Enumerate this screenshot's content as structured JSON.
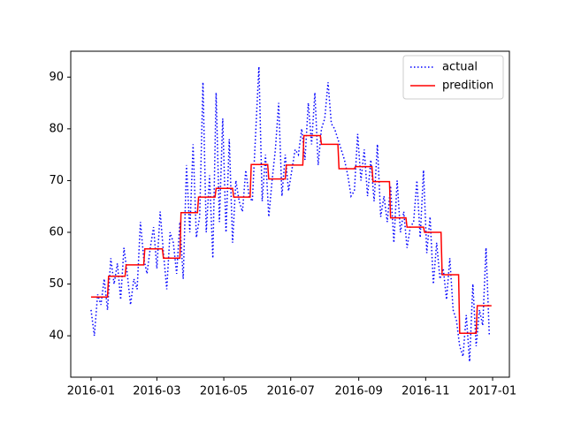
{
  "chart_data": {
    "type": "line",
    "xlim": [
      -18.5,
      381.3
    ],
    "ylim": [
      32,
      95
    ],
    "xticks": [
      {
        "value": 0,
        "label": "2016-01"
      },
      {
        "value": 60,
        "label": "2016-03"
      },
      {
        "value": 121,
        "label": "2016-05"
      },
      {
        "value": 182,
        "label": "2016-07"
      },
      {
        "value": 244,
        "label": "2016-09"
      },
      {
        "value": 305,
        "label": "2016-11"
      },
      {
        "value": 366,
        "label": "2017-01"
      }
    ],
    "yticks": [
      40,
      50,
      60,
      70,
      80,
      90
    ],
    "grid": false,
    "legend": "upper right",
    "series": [
      {
        "name": "actual",
        "color": "#0000ff",
        "linestyle": "dotted",
        "x": [
          0,
          3,
          6,
          9,
          12,
          15,
          18,
          21,
          24,
          27,
          30,
          33,
          36,
          39,
          42,
          45,
          48,
          51,
          54,
          57,
          60,
          63,
          66,
          69,
          72,
          75,
          78,
          81,
          84,
          87,
          90,
          93,
          96,
          99,
          102,
          105,
          108,
          111,
          114,
          117,
          120,
          123,
          126,
          129,
          132,
          135,
          138,
          141,
          144,
          147,
          150,
          153,
          156,
          159,
          162,
          165,
          168,
          171,
          174,
          177,
          180,
          183,
          186,
          189,
          192,
          195,
          198,
          201,
          204,
          207,
          210,
          213,
          216,
          219,
          222,
          225,
          228,
          231,
          234,
          237,
          240,
          243,
          246,
          249,
          252,
          255,
          258,
          261,
          264,
          267,
          270,
          273,
          276,
          279,
          282,
          285,
          288,
          291,
          294,
          297,
          300,
          303,
          306,
          309,
          312,
          315,
          318,
          321,
          324,
          327,
          330,
          333,
          336,
          339,
          342,
          345,
          348,
          351,
          354,
          357,
          360,
          363
        ],
        "values": [
          45,
          40,
          48,
          46,
          51,
          45,
          55,
          50,
          54,
          47,
          57,
          52,
          46,
          51,
          49,
          62,
          55,
          52,
          57,
          61,
          53,
          64,
          56,
          49,
          60,
          58,
          52,
          62,
          51,
          73,
          60,
          77,
          59,
          63,
          89,
          60,
          71,
          55,
          87,
          62,
          82,
          60,
          78,
          58,
          70,
          66,
          64,
          72,
          67,
          66,
          79,
          92,
          66,
          75,
          63,
          70,
          76,
          85,
          67,
          75,
          68,
          72,
          76,
          75,
          80,
          74,
          85,
          77,
          87,
          73,
          80,
          82,
          89,
          81,
          80,
          78,
          76,
          74,
          71,
          67,
          68,
          79,
          70,
          76,
          67,
          74,
          66,
          77,
          63,
          67,
          62,
          69,
          58,
          70,
          60,
          64,
          57,
          61,
          62,
          70,
          59,
          72,
          56,
          63,
          50,
          58,
          51,
          53,
          47,
          55,
          45,
          43,
          38,
          36,
          44,
          35,
          50,
          38,
          45,
          42,
          57,
          40
        ]
      },
      {
        "name": "predition",
        "color": "#ff0000",
        "linestyle": "solid",
        "x": [
          0,
          15,
          16,
          31,
          32,
          48,
          49,
          65,
          66,
          81,
          82,
          97,
          98,
          113,
          114,
          129,
          130,
          145,
          146,
          161,
          162,
          177,
          178,
          193,
          194,
          209,
          210,
          225,
          226,
          240,
          241,
          256,
          257,
          272,
          273,
          287,
          288,
          303,
          304,
          319,
          320,
          335,
          336,
          351,
          352,
          365
        ],
        "values": [
          47.5,
          47.5,
          51.5,
          51.5,
          53.7,
          53.7,
          56.8,
          56.8,
          55,
          55,
          63.8,
          63.8,
          66.8,
          66.8,
          68.5,
          68.5,
          66.8,
          66.8,
          73.1,
          73.1,
          70.3,
          70.3,
          73,
          73,
          78.7,
          78.7,
          77,
          77,
          72.3,
          72.3,
          72.7,
          72.7,
          69.8,
          69.8,
          62.8,
          62.8,
          61,
          61,
          60,
          60,
          51.8,
          51.8,
          40.5,
          40.5,
          45.8,
          45.8
        ]
      }
    ]
  }
}
